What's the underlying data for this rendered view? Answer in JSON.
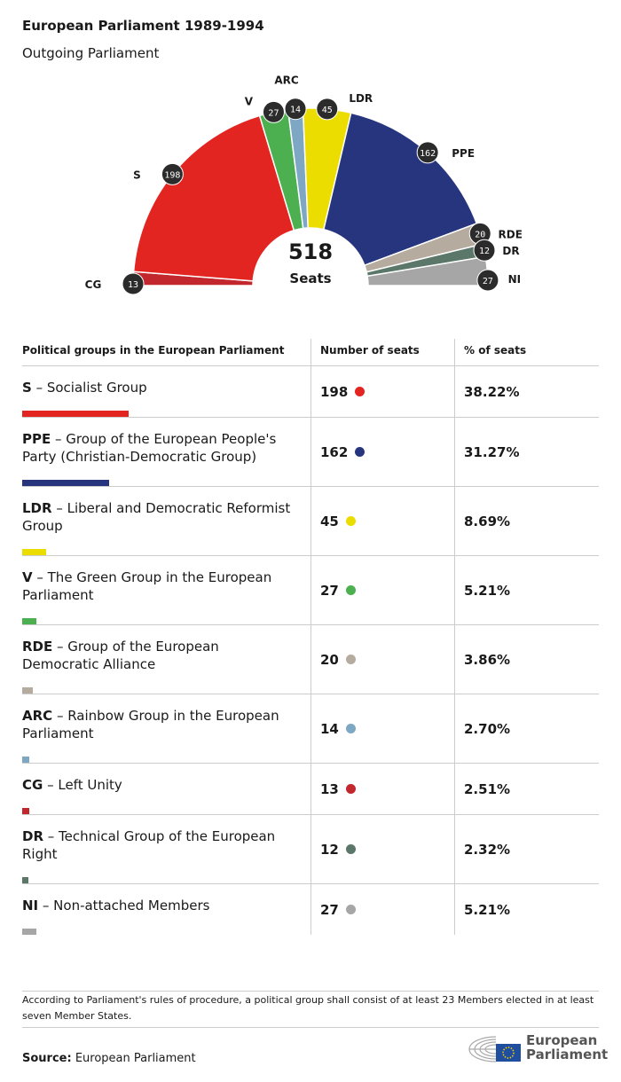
{
  "title": "European Parliament 1989-1994",
  "subtitle": "Outgoing Parliament",
  "chart_data": {
    "type": "pie",
    "variant": "hemicycle",
    "total": 518,
    "total_label": "Seats",
    "groups": [
      {
        "abbr": "CG",
        "seats": 13,
        "color": "#c1272d"
      },
      {
        "abbr": "S",
        "seats": 198,
        "color": "#e32522"
      },
      {
        "abbr": "V",
        "seats": 27,
        "color": "#4caf50"
      },
      {
        "abbr": "ARC",
        "seats": 14,
        "color": "#7ea7c4"
      },
      {
        "abbr": "LDR",
        "seats": 45,
        "color": "#ecdd00"
      },
      {
        "abbr": "PPE",
        "seats": 162,
        "color": "#26357e"
      },
      {
        "abbr": "RDE",
        "seats": 20,
        "color": "#b5ac9f"
      },
      {
        "abbr": "DR",
        "seats": 12,
        "color": "#5a776a"
      },
      {
        "abbr": "NI",
        "seats": 27,
        "color": "#a6a6a6"
      }
    ]
  },
  "table": {
    "headers": [
      "Political groups in the European Parliament",
      "Number of seats",
      "% of seats"
    ],
    "rows": [
      {
        "abbr": "S",
        "name": " – Socialist Group",
        "seats": "198",
        "pct": "38.22%",
        "color": "#e32522",
        "n": 198
      },
      {
        "abbr": "PPE",
        "name": " – Group of the European People's Party (Christian-Democratic Group)",
        "seats": "162",
        "pct": "31.27%",
        "color": "#26357e",
        "n": 162
      },
      {
        "abbr": "LDR",
        "name": " – Liberal and Democratic Reformist Group",
        "seats": "45",
        "pct": "8.69%",
        "color": "#ecdd00",
        "n": 45
      },
      {
        "abbr": "V",
        "name": " – The Green Group in the European Parliament",
        "seats": "27",
        "pct": "5.21%",
        "color": "#4caf50",
        "n": 27
      },
      {
        "abbr": "RDE",
        "name": " – Group of the European Democratic Alliance",
        "seats": "20",
        "pct": "3.86%",
        "color": "#b5ac9f",
        "n": 20
      },
      {
        "abbr": "ARC",
        "name": " – Rainbow Group in the European Parliament",
        "seats": "14",
        "pct": "2.70%",
        "color": "#7ea7c4",
        "n": 14
      },
      {
        "abbr": "CG",
        "name": " – Left Unity",
        "seats": "13",
        "pct": "2.51%",
        "color": "#c1272d",
        "n": 13
      },
      {
        "abbr": "DR",
        "name": " – Technical Group of the European Right",
        "seats": "12",
        "pct": "2.32%",
        "color": "#5a776a",
        "n": 12
      },
      {
        "abbr": "NI",
        "name": " – Non-attached Members",
        "seats": "27",
        "pct": "5.21%",
        "color": "#a6a6a6",
        "n": 27
      }
    ]
  },
  "note": "According to Parliament's rules of procedure, a political group shall consist of at least 23 Members elected in at least seven Member States.",
  "source_label": "Source:",
  "source": " European Parliament",
  "logo": {
    "line1": "European",
    "line2": "Parliament"
  }
}
